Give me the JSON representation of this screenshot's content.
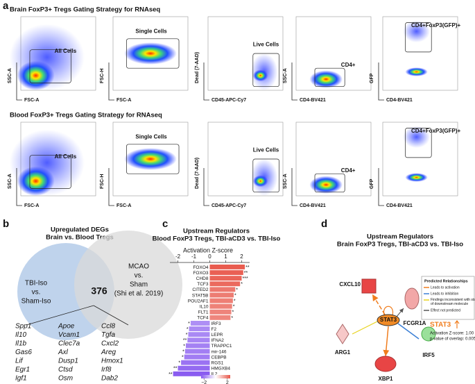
{
  "panel_a": {
    "label": "a",
    "rows": [
      {
        "title": "Brain FoxP3+ Tregs Gating Strategy for RNAseq",
        "plots": [
          {
            "gate": "All Cells",
            "x_label": "FSC-A",
            "y_label": "SSC-A"
          },
          {
            "gate": "Single Cells",
            "x_label": "FSC-A",
            "y_label": "FSC-H"
          },
          {
            "gate": "Live Cells",
            "x_label": "CD45-APC-Cy7",
            "y_label": "Dead (7-AAD)"
          },
          {
            "gate": "CD4+",
            "x_label": "CD4-BV421",
            "y_label": "SSC-A"
          },
          {
            "gate": "CD4+FoxP3(GFP)+",
            "x_label": "CD4-BV421",
            "y_label": "GFP"
          }
        ]
      },
      {
        "title": "Blood FoxP3+ Tregs Gating Strategy for RNAseq",
        "plots": [
          {
            "gate": "All Cells",
            "x_label": "FSC-A",
            "y_label": "SSC-A"
          },
          {
            "gate": "Single Cells",
            "x_label": "FSC-A",
            "y_label": "FSC-H"
          },
          {
            "gate": "Live Cells",
            "x_label": "CD45-APC-Cy7",
            "y_label": "Dead (7-AAD)"
          },
          {
            "gate": "CD4+",
            "x_label": "CD4-BV421",
            "y_label": "SSC-A"
          },
          {
            "gate": "CD4+FoxP3(GFP)+",
            "x_label": "CD4-BV421",
            "y_label": "GFP"
          }
        ]
      }
    ]
  },
  "panel_b": {
    "label": "b",
    "title": [
      "Upregulated DEGs",
      "Brain vs. Blood Tregs"
    ],
    "left_set": [
      "TBI-Iso",
      "vs.",
      "Sham-Iso"
    ],
    "right_set": [
      "MCAO",
      "vs.",
      "Sham",
      "(Shi et al. 2019)"
    ],
    "overlap": "376",
    "gene_columns": [
      [
        "Spp1",
        "Il10",
        "Il1b",
        "Gas6",
        "Lif",
        "Egr1",
        "Igf1"
      ],
      [
        "Apoe",
        "Vcam1",
        "Clec7a",
        "Axl",
        "Dusp1",
        "Ctsd",
        "Osm"
      ],
      [
        "Ccl8",
        "Tgfa",
        "Cxcl2",
        "Areg",
        "Hmox1",
        "Irf8",
        "Dab2"
      ]
    ]
  },
  "chart_data": {
    "type": "bar",
    "label": "c",
    "title": [
      "Upstream Regulators",
      "Blood FoxP3 Tregs, TBI-aCD3 vs. TBI-Iso"
    ],
    "x_label": "Activation Z-score",
    "xlim": [
      -2.5,
      2.5
    ],
    "xticks": [
      -2,
      -1,
      0,
      1,
      2
    ],
    "categories": [
      "FOXO4",
      "FOXO3",
      "CHD8",
      "TCF3",
      "CITED2",
      "STAT5B",
      "POU2AF1",
      "IL10",
      "FLT1",
      "TCF4",
      "IRF3",
      "F2",
      "LEPR",
      "IFNA2",
      "TRAPPC1",
      "mir-146",
      "CEBPB",
      "RGS1",
      "HMGXB4",
      "IL2"
    ],
    "values": [
      2.2,
      2.1,
      2.0,
      1.9,
      1.6,
      1.5,
      1.45,
      1.4,
      1.35,
      1.3,
      -1.2,
      -1.3,
      -1.35,
      -1.4,
      -1.5,
      -1.55,
      -1.6,
      -1.8,
      -2.0,
      -2.3
    ],
    "significance": [
      "**",
      "**",
      "***",
      "*",
      "*",
      "*",
      "*",
      "*",
      "*",
      "*",
      "*",
      "*",
      "*",
      "**",
      "*",
      "*",
      "*",
      "*",
      "**",
      "**"
    ],
    "colorbar": {
      "colors": [
        "#8a5cf0",
        "#ffffff",
        "#e8574a"
      ],
      "ticks": [
        {
          "value": -2,
          "label": "−2"
        },
        2
      ]
    }
  },
  "panel_d": {
    "label": "d",
    "title": [
      "Upstream Regulators",
      "Brain FoxP3 Tregs, TBI-aCD3 vs. TBI-Iso"
    ],
    "nodes": [
      "CXCL10",
      "FCGR1A",
      "STAT3",
      "ARG1",
      "IRF5",
      "XBP1"
    ],
    "legend_title": "Predicted Relationships",
    "legend": [
      {
        "label": "Leads to activation",
        "color": "#f07d1e"
      },
      {
        "label": "Leads to inhibition",
        "color": "#3a7fd5"
      },
      {
        "label": "Findings inconsistent with state of downstream molecule",
        "color": "#e8d31c"
      },
      {
        "label": "Effect not predicted",
        "color": "#555555"
      }
    ],
    "annotation": {
      "name": "STAT3",
      "lines": [
        "Activation Z-score: 1.00",
        "p-value of overlap: 0.00584"
      ]
    }
  }
}
